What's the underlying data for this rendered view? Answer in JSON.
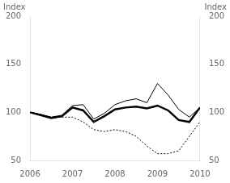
{
  "chart_data": {
    "type": "line",
    "ylabel": "Index",
    "y2label": "Index",
    "x": [
      2006.0,
      2006.25,
      2006.5,
      2006.75,
      2007.0,
      2007.25,
      2007.5,
      2007.75,
      2008.0,
      2008.25,
      2008.5,
      2008.75,
      2009.0,
      2009.25,
      2009.5,
      2009.75,
      2010.0
    ],
    "xlim": [
      2006,
      2010
    ],
    "xticks": [
      2006,
      2007,
      2008,
      2009,
      2010
    ],
    "ylim": [
      50,
      200
    ],
    "yticks": [
      50,
      100,
      150,
      200
    ],
    "y2lim": [
      50,
      200
    ],
    "y2ticks": [
      50,
      100,
      150,
      200
    ],
    "grid": false,
    "series": [
      {
        "color": "#000000",
        "line_style": "solid",
        "values": [
          100,
          98,
          95,
          97,
          107,
          108,
          93,
          99,
          108,
          112,
          114,
          110,
          130,
          118,
          103,
          95,
          105
        ]
      },
      {
        "color": "#000000",
        "line_style": "solid",
        "values": [
          100,
          97,
          94,
          96,
          105,
          102,
          90,
          96,
          103,
          105,
          106,
          104,
          107,
          102,
          92,
          90,
          105
        ]
      },
      {
        "color": "#000000",
        "line_style": "dotted",
        "values": [
          100,
          98,
          95,
          95,
          95,
          90,
          82,
          80,
          82,
          80,
          75,
          65,
          57,
          57,
          60,
          75,
          90
        ]
      }
    ]
  }
}
